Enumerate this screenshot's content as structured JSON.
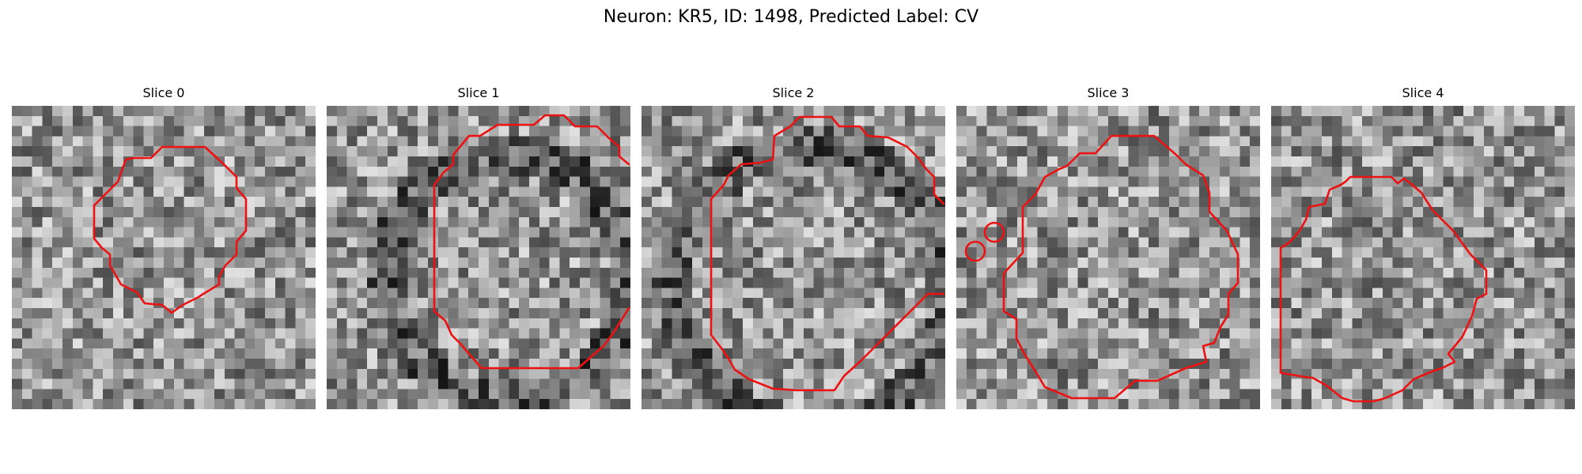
{
  "figure": {
    "title": "Neuron: KR5, ID: 1498, Predicted Label: CV",
    "contour_color": "#ee1111",
    "colormap": "grayscale",
    "grid_size": 30
  },
  "panels": [
    {
      "title": "Slice 0"
    },
    {
      "title": "Slice 1"
    },
    {
      "title": "Slice 2"
    },
    {
      "title": "Slice 3"
    },
    {
      "title": "Slice 4"
    }
  ]
}
